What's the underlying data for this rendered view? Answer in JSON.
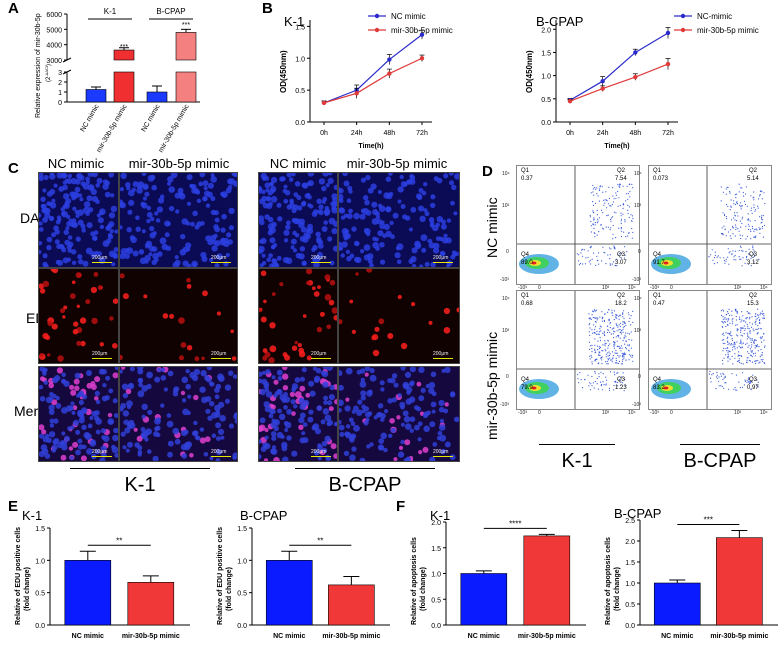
{
  "panel_letters": {
    "A": "A",
    "B": "B",
    "C": "C",
    "D": "D",
    "E": "E",
    "F": "F"
  },
  "chart_data": [
    {
      "id": "A",
      "type": "bar",
      "ylabel": "Relative expression of mir-30b-5p",
      "ylabel2": "(2",
      "ylabel2_sup": "-ΔΔCt",
      "ylabel2_end": ")",
      "groups": [
        "K-1",
        "B-CPAP"
      ],
      "categories": [
        "NC mimic",
        "mir-30b-5p mimic",
        "NC mimic",
        "mir-30b-5p mimic"
      ],
      "values": [
        1.25,
        3650,
        1.0,
        4800
      ],
      "errors": [
        0.25,
        150,
        0.6,
        200
      ],
      "colors": [
        "#1a3bff",
        "#f03030",
        "#1a3bff",
        "#f58080"
      ],
      "significance": [
        "***",
        "***"
      ],
      "yticks_low": [
        "0",
        "1",
        "2",
        "3"
      ],
      "yticks_high": [
        "3000",
        "4000",
        "5000",
        "6000"
      ]
    },
    {
      "id": "B1",
      "type": "line",
      "title": "K-1",
      "xlabel": "Time(h)",
      "ylabel": "OD(450nm)",
      "categories": [
        "0h",
        "24h",
        "48h",
        "72h"
      ],
      "yticks": [
        "0.0",
        "0.5",
        "1.0",
        "1.5"
      ],
      "ylim": [
        0,
        1.6
      ],
      "series": [
        {
          "name": "NC mimic",
          "color": "#2b2bcc",
          "values": [
            0.3,
            0.5,
            0.98,
            1.37
          ],
          "errors": [
            0.03,
            0.08,
            0.08,
            0.07
          ]
        },
        {
          "name": "mir-30b-5p mimic",
          "color": "#e03a3a",
          "values": [
            0.3,
            0.45,
            0.76,
            1.0
          ],
          "errors": [
            0.03,
            0.08,
            0.07,
            0.05
          ]
        }
      ]
    },
    {
      "id": "B2",
      "type": "line",
      "title": "B-CPAP",
      "xlabel": "Time(h)",
      "ylabel": "OD(450nm)",
      "categories": [
        "0h",
        "24h",
        "48h",
        "72h"
      ],
      "yticks": [
        "0.0",
        "0.5",
        "1.0",
        "1.5",
        "2.0"
      ],
      "ylim": [
        0,
        2.2
      ],
      "series": [
        {
          "name": "NC-mimic",
          "color": "#2b2bcc",
          "values": [
            0.47,
            0.88,
            1.5,
            1.92
          ],
          "errors": [
            0.04,
            0.1,
            0.07,
            0.12
          ]
        },
        {
          "name": "mir-30b-5p mimic",
          "color": "#e03a3a",
          "values": [
            0.45,
            0.72,
            0.97,
            1.25
          ],
          "errors": [
            0.04,
            0.06,
            0.07,
            0.12
          ]
        }
      ]
    },
    {
      "id": "E1",
      "type": "bar",
      "title": "K-1",
      "ylabel": "Relative of EDU positive cells",
      "ylabel2": "(fold change)",
      "categories": [
        "NC mimic",
        "mir-30b-5p mimic"
      ],
      "values": [
        1.0,
        0.66
      ],
      "errors": [
        0.14,
        0.1
      ],
      "colors": [
        "#0a1cff",
        "#f03838"
      ],
      "yticks": [
        "0.0",
        "0.5",
        "1.0",
        "1.5"
      ],
      "ylim": [
        0,
        1.5
      ],
      "significance": "**"
    },
    {
      "id": "E2",
      "type": "bar",
      "title": "B-CPAP",
      "ylabel": "Relative of EDU positive cells",
      "ylabel2": "(fold change)",
      "categories": [
        "NC mimic",
        "mir-30b-5p mimic"
      ],
      "values": [
        1.0,
        0.62
      ],
      "errors": [
        0.14,
        0.13
      ],
      "colors": [
        "#0a1cff",
        "#f03838"
      ],
      "yticks": [
        "0.0",
        "0.5",
        "1.0",
        "1.5"
      ],
      "ylim": [
        0,
        1.5
      ],
      "significance": "**"
    },
    {
      "id": "F1",
      "type": "bar",
      "title": "K-1",
      "ylabel": "Relative of apoptosis cells",
      "ylabel2": "(fold change)",
      "categories": [
        "NC mimic",
        "mir-30b-5p mimic"
      ],
      "values": [
        1.0,
        1.73
      ],
      "errors": [
        0.05,
        0.03
      ],
      "colors": [
        "#0a1cff",
        "#f03838"
      ],
      "yticks": [
        "0.0",
        "0.5",
        "1.0",
        "1.5",
        "2.0"
      ],
      "ylim": [
        0,
        2.0
      ],
      "significance": "****"
    },
    {
      "id": "F2",
      "type": "bar",
      "title": "B-CPAP",
      "ylabel": "Relative of apoptosis cells",
      "ylabel2": "(fold change)",
      "categories": [
        "NC mimic",
        "mir-30b-5p mimic"
      ],
      "values": [
        1.0,
        2.08
      ],
      "errors": [
        0.07,
        0.17
      ],
      "colors": [
        "#0a1cff",
        "#f03838"
      ],
      "yticks": [
        "0.0",
        "0.5",
        "1.0",
        "1.5",
        "2.0",
        "2.5"
      ],
      "ylim": [
        0,
        2.5
      ],
      "significance": "***"
    }
  ],
  "panelC": {
    "columns": [
      "NC mimic",
      "mir-30b-5p mimic",
      "NC mimic",
      "mir-30b-5p mimic"
    ],
    "rows": [
      "DAPI",
      "EDU",
      "Merge"
    ],
    "scale": "200μm",
    "groups": [
      "K-1",
      "B-CPAP"
    ]
  },
  "panelD": {
    "rows": [
      "NC mimic",
      "mir-30b-5p mimic"
    ],
    "groups": [
      "K-1",
      "B-CPAP"
    ],
    "axis_ticks": {
      "x": [
        "0",
        "10³",
        "10⁴",
        "-10³"
      ],
      "y": [
        "10⁴",
        "10³",
        "0",
        "-10³"
      ]
    },
    "plots": [
      {
        "q1_label": "Q1",
        "q1": "0.37",
        "q2_label": "Q2",
        "q2": "7.54",
        "q3_label": "Q3",
        "q3": "3.07",
        "q4_label": "Q4",
        "q4": "89.0"
      },
      {
        "q1_label": "Q1",
        "q1": "0.073",
        "q2_label": "Q2",
        "q2": "5.14",
        "q3_label": "Q3",
        "q3": "3.12",
        "q4_label": "Q4",
        "q4": "91.7"
      },
      {
        "q1_label": "Q1",
        "q1": "0.68",
        "q2_label": "Q2",
        "q2": "18.2",
        "q3_label": "Q3",
        "q3": "1.23",
        "q4_label": "Q4",
        "q4": "79.9"
      },
      {
        "q1_label": "Q1",
        "q1": "0.47",
        "q2_label": "Q2",
        "q2": "15.3",
        "q3_label": "Q3",
        "q3": "0.97",
        "q4_label": "Q4",
        "q4": "83.2"
      }
    ]
  }
}
